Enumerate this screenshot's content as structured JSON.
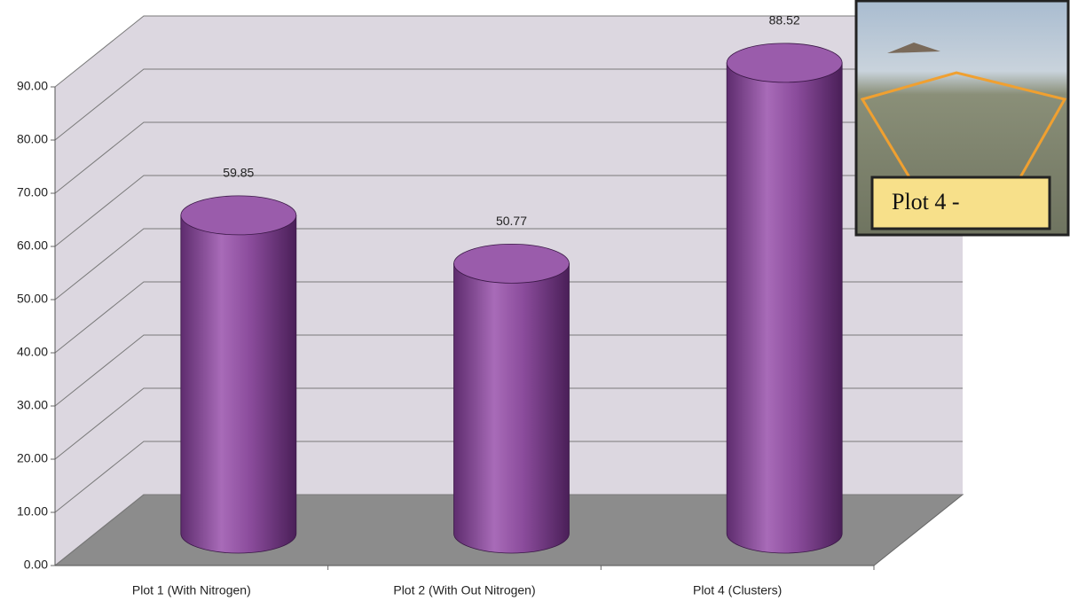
{
  "chart_data": {
    "type": "bar",
    "categories": [
      "Plot 1 (With Nitrogen)",
      "Plot 2 (With Out Nitrogen)",
      "Plot 4 (Clusters)"
    ],
    "values": [
      59.85,
      50.77,
      88.52
    ],
    "color": "#8b4c9c",
    "ylim": [
      0,
      90
    ],
    "yticks": [
      {
        "value": 0,
        "label": "0.00"
      },
      {
        "value": 10,
        "label": "10.00"
      },
      {
        "value": 20,
        "label": "20.00"
      },
      {
        "value": 30,
        "label": "30.00"
      },
      {
        "value": 40,
        "label": "40.00"
      },
      {
        "value": 50,
        "label": "50.00"
      },
      {
        "value": 60,
        "label": "60.00"
      },
      {
        "value": 70,
        "label": "70.00"
      },
      {
        "value": 80,
        "label": "80.00"
      },
      {
        "value": 90,
        "label": "90.00"
      }
    ],
    "grid": true,
    "inset_label": "Plot 4 -"
  }
}
